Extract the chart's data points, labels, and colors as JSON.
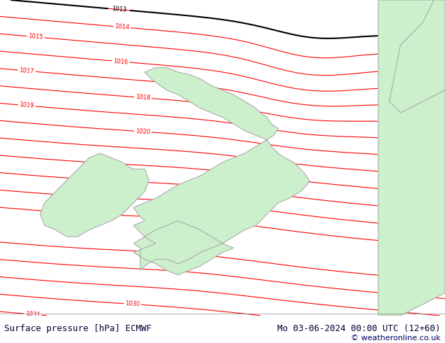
{
  "title_left": "Surface pressure [hPa] ECMWF",
  "title_right": "Mo 03-06-2024 00:00 UTC (12+60)",
  "copyright": "© weatheronline.co.uk",
  "bg_color": "#e8e8e8",
  "land_color": "#ccf0cc",
  "land_border_color": "#aaaaaa",
  "isobar_color_red": "#ff0000",
  "isobar_color_black": "#000000",
  "isobar_color_blue": "#0000cc",
  "label_color_red": "#ff0000",
  "label_color_black": "#000000",
  "footer_bg": "#ffffff",
  "footer_text_color": "#000033",
  "figsize": [
    6.34,
    4.9
  ],
  "dpi": 100
}
